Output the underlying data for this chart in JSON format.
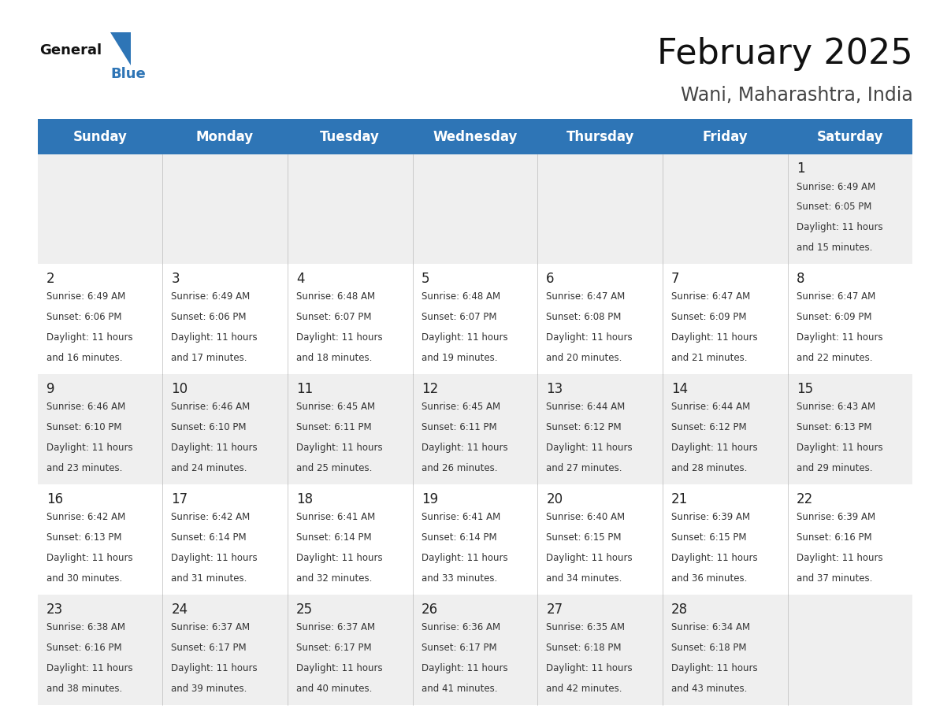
{
  "title": "February 2025",
  "subtitle": "Wani, Maharashtra, India",
  "header_bg_color": "#2E75B6",
  "header_text_color": "#FFFFFF",
  "cell_bg_even": "#EFEFEF",
  "cell_bg_odd": "#FFFFFF",
  "cell_text_color": "#333333",
  "day_number_color": "#222222",
  "days_of_week": [
    "Sunday",
    "Monday",
    "Tuesday",
    "Wednesday",
    "Thursday",
    "Friday",
    "Saturday"
  ],
  "calendar_data": [
    [
      null,
      null,
      null,
      null,
      null,
      null,
      {
        "day": 1,
        "sunrise": "6:49 AM",
        "sunset": "6:05 PM",
        "daylight": "11 hours and 15 minutes."
      }
    ],
    [
      {
        "day": 2,
        "sunrise": "6:49 AM",
        "sunset": "6:06 PM",
        "daylight": "11 hours and 16 minutes."
      },
      {
        "day": 3,
        "sunrise": "6:49 AM",
        "sunset": "6:06 PM",
        "daylight": "11 hours and 17 minutes."
      },
      {
        "day": 4,
        "sunrise": "6:48 AM",
        "sunset": "6:07 PM",
        "daylight": "11 hours and 18 minutes."
      },
      {
        "day": 5,
        "sunrise": "6:48 AM",
        "sunset": "6:07 PM",
        "daylight": "11 hours and 19 minutes."
      },
      {
        "day": 6,
        "sunrise": "6:47 AM",
        "sunset": "6:08 PM",
        "daylight": "11 hours and 20 minutes."
      },
      {
        "day": 7,
        "sunrise": "6:47 AM",
        "sunset": "6:09 PM",
        "daylight": "11 hours and 21 minutes."
      },
      {
        "day": 8,
        "sunrise": "6:47 AM",
        "sunset": "6:09 PM",
        "daylight": "11 hours and 22 minutes."
      }
    ],
    [
      {
        "day": 9,
        "sunrise": "6:46 AM",
        "sunset": "6:10 PM",
        "daylight": "11 hours and 23 minutes."
      },
      {
        "day": 10,
        "sunrise": "6:46 AM",
        "sunset": "6:10 PM",
        "daylight": "11 hours and 24 minutes."
      },
      {
        "day": 11,
        "sunrise": "6:45 AM",
        "sunset": "6:11 PM",
        "daylight": "11 hours and 25 minutes."
      },
      {
        "day": 12,
        "sunrise": "6:45 AM",
        "sunset": "6:11 PM",
        "daylight": "11 hours and 26 minutes."
      },
      {
        "day": 13,
        "sunrise": "6:44 AM",
        "sunset": "6:12 PM",
        "daylight": "11 hours and 27 minutes."
      },
      {
        "day": 14,
        "sunrise": "6:44 AM",
        "sunset": "6:12 PM",
        "daylight": "11 hours and 28 minutes."
      },
      {
        "day": 15,
        "sunrise": "6:43 AM",
        "sunset": "6:13 PM",
        "daylight": "11 hours and 29 minutes."
      }
    ],
    [
      {
        "day": 16,
        "sunrise": "6:42 AM",
        "sunset": "6:13 PM",
        "daylight": "11 hours and 30 minutes."
      },
      {
        "day": 17,
        "sunrise": "6:42 AM",
        "sunset": "6:14 PM",
        "daylight": "11 hours and 31 minutes."
      },
      {
        "day": 18,
        "sunrise": "6:41 AM",
        "sunset": "6:14 PM",
        "daylight": "11 hours and 32 minutes."
      },
      {
        "day": 19,
        "sunrise": "6:41 AM",
        "sunset": "6:14 PM",
        "daylight": "11 hours and 33 minutes."
      },
      {
        "day": 20,
        "sunrise": "6:40 AM",
        "sunset": "6:15 PM",
        "daylight": "11 hours and 34 minutes."
      },
      {
        "day": 21,
        "sunrise": "6:39 AM",
        "sunset": "6:15 PM",
        "daylight": "11 hours and 36 minutes."
      },
      {
        "day": 22,
        "sunrise": "6:39 AM",
        "sunset": "6:16 PM",
        "daylight": "11 hours and 37 minutes."
      }
    ],
    [
      {
        "day": 23,
        "sunrise": "6:38 AM",
        "sunset": "6:16 PM",
        "daylight": "11 hours and 38 minutes."
      },
      {
        "day": 24,
        "sunrise": "6:37 AM",
        "sunset": "6:17 PM",
        "daylight": "11 hours and 39 minutes."
      },
      {
        "day": 25,
        "sunrise": "6:37 AM",
        "sunset": "6:17 PM",
        "daylight": "11 hours and 40 minutes."
      },
      {
        "day": 26,
        "sunrise": "6:36 AM",
        "sunset": "6:17 PM",
        "daylight": "11 hours and 41 minutes."
      },
      {
        "day": 27,
        "sunrise": "6:35 AM",
        "sunset": "6:18 PM",
        "daylight": "11 hours and 42 minutes."
      },
      {
        "day": 28,
        "sunrise": "6:34 AM",
        "sunset": "6:18 PM",
        "daylight": "11 hours and 43 minutes."
      },
      null
    ]
  ],
  "logo_triangle_color": "#2E75B6",
  "title_fontsize": 32,
  "subtitle_fontsize": 17,
  "header_fontsize": 12,
  "day_number_fontsize": 12,
  "cell_text_fontsize": 8.5,
  "divider_color": "#2E75B6",
  "num_cols": 7,
  "num_rows": 5
}
